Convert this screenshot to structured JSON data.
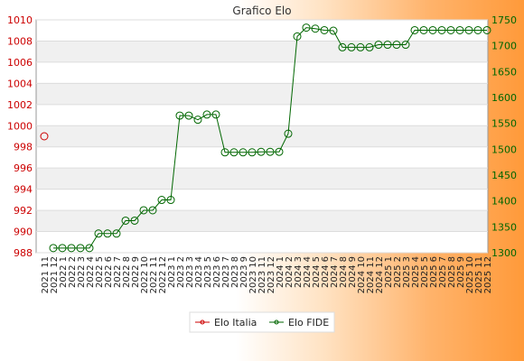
{
  "chart_data": {
    "type": "line",
    "title": "Grafico Elo",
    "categories": [
      "2021 11",
      "2021 12",
      "2022 1",
      "2022 2",
      "2022 3",
      "2022 4",
      "2022 5",
      "2022 6",
      "2022 7",
      "2022 8",
      "2022 9",
      "2022 10",
      "2022 11",
      "2022 12",
      "2023 1",
      "2023 2",
      "2023 3",
      "2023 4",
      "2023 5",
      "2023 6",
      "2023 7",
      "2023 8",
      "2023 9",
      "2023 10",
      "2023 11",
      "2023 12",
      "2024 1",
      "2024 2",
      "2024 3",
      "2024 4",
      "2024 5",
      "2024 6",
      "2024 7",
      "2024 8",
      "2024 9",
      "2024 10",
      "2024 11",
      "2024 12",
      "2025 1",
      "2025 2",
      "2025 3",
      "2025 4",
      "2025 5",
      "2025 6",
      "2025 7",
      "2025 8",
      "2025 9",
      "2025 10",
      "2025 11",
      "2025 12"
    ],
    "y_left": {
      "min": 988,
      "max": 1010,
      "step": 2,
      "color": "#cc0000"
    },
    "y_right": {
      "min": 1300,
      "max": 1750,
      "step": 50,
      "color": "#006600"
    },
    "grid": true,
    "legend": {
      "placement": "bottom-center"
    },
    "series": [
      {
        "name": "Elo Italia",
        "axis": "left",
        "color": "#cc0000",
        "values": [
          999,
          null,
          null,
          null,
          null,
          null,
          null,
          null,
          null,
          null,
          null,
          null,
          null,
          null,
          null,
          null,
          null,
          null,
          null,
          null,
          null,
          null,
          null,
          null,
          null,
          null,
          null,
          null,
          null,
          null,
          null,
          null,
          null,
          null,
          null,
          null,
          null,
          null,
          null,
          null,
          null,
          null,
          null,
          null,
          null,
          null,
          null,
          null,
          null,
          null
        ]
      },
      {
        "name": "Elo FIDE",
        "axis": "right",
        "color": "#006600",
        "values": [
          null,
          1309,
          1309,
          1309,
          1309,
          1309,
          1337,
          1337,
          1337,
          1362,
          1362,
          1382,
          1382,
          1402,
          1402,
          1565,
          1565,
          1557,
          1567,
          1567,
          1494,
          1494,
          1494,
          1494,
          1495,
          1495,
          1495,
          1530,
          1718,
          1735,
          1733,
          1730,
          1729,
          1697,
          1697,
          1697,
          1697,
          1702,
          1702,
          1702,
          1702,
          1730,
          1730,
          1730,
          1730,
          1730,
          1730,
          1730,
          1730,
          1730
        ]
      }
    ]
  }
}
